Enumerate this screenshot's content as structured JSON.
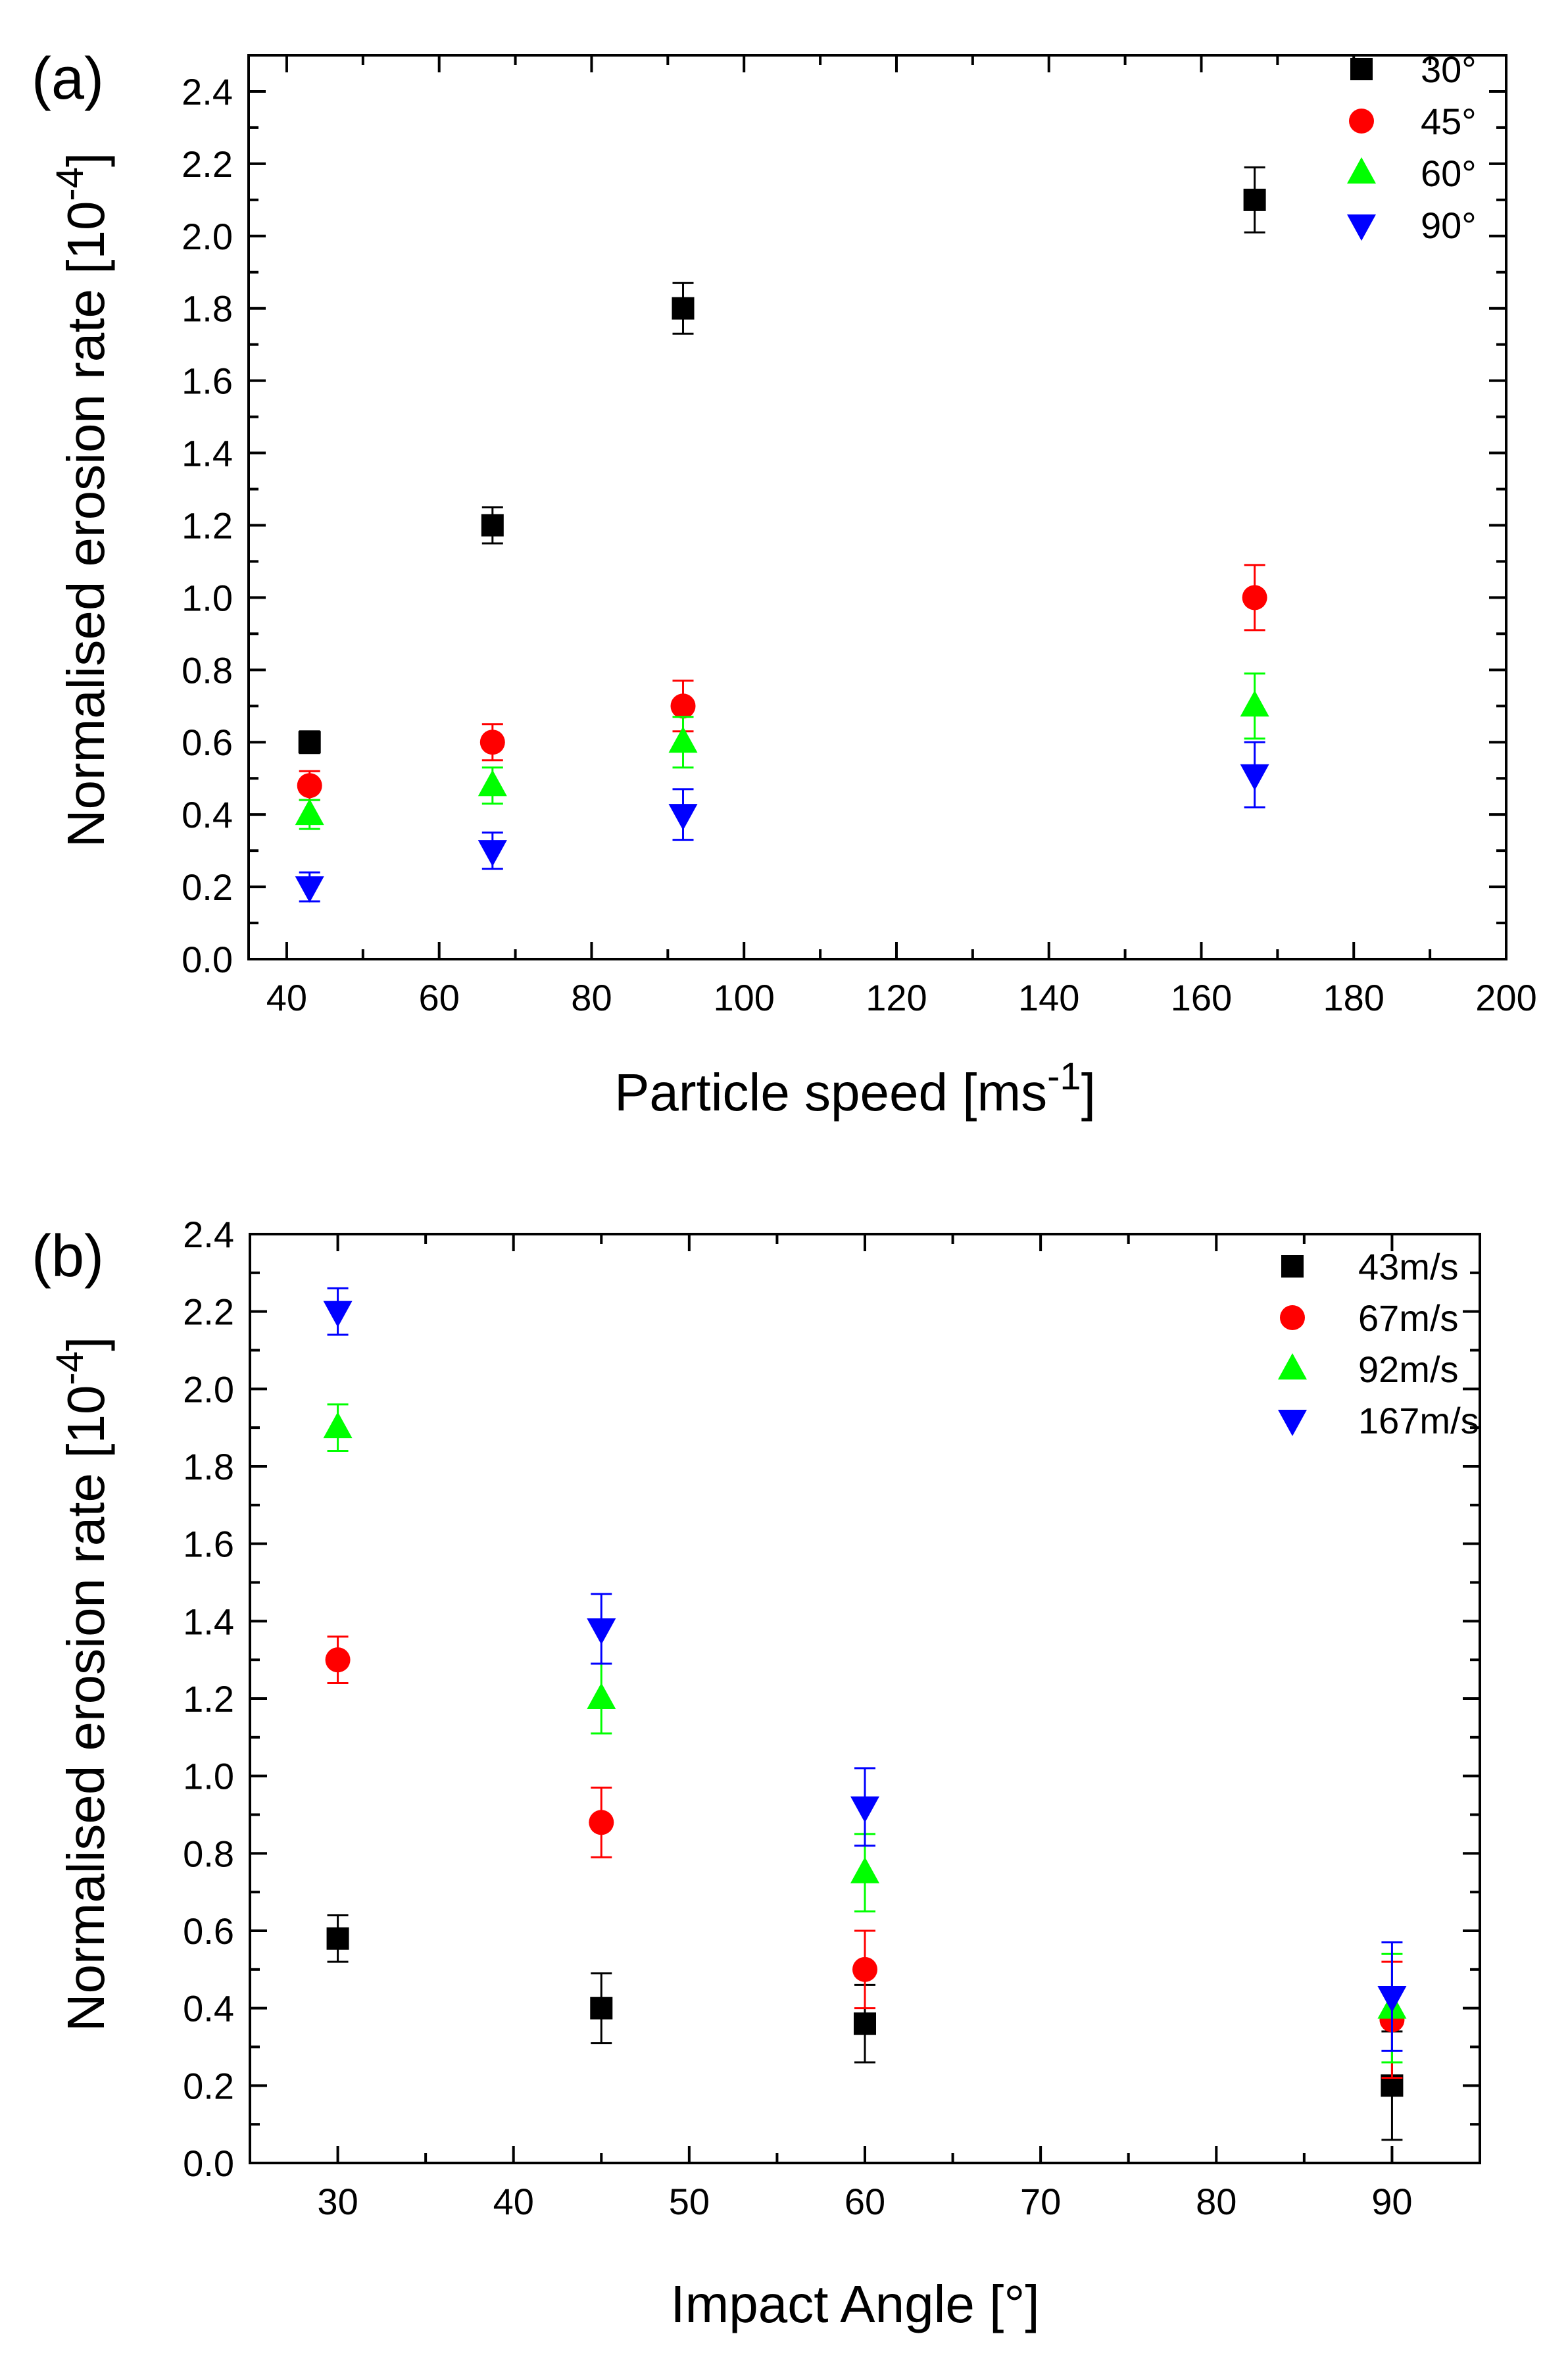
{
  "chart_data": [
    {
      "type": "scatter",
      "panel_label": "(a)",
      "title": "",
      "xlabel": "Particle speed [ms",
      "xlabel_sup": "-1",
      "xlabel_end": "]",
      "ylabel": "Normalised erosion rate [10",
      "ylabel_sup": "-4",
      "ylabel_end": "]",
      "xlim": [
        35,
        200
      ],
      "ylim": [
        0,
        2.5
      ],
      "xticks": [
        40,
        60,
        80,
        100,
        120,
        140,
        160,
        180,
        200
      ],
      "xtick_labels": [
        "40",
        "60",
        "80",
        "100",
        "120",
        "140",
        "160",
        "180",
        "200"
      ],
      "yticks": [
        0.0,
        0.2,
        0.4,
        0.6,
        0.8,
        1.0,
        1.2,
        1.4,
        1.6,
        1.8,
        2.0,
        2.2,
        2.4
      ],
      "ytick_labels": [
        "0.0",
        "0.2",
        "0.4",
        "0.6",
        "0.8",
        "1.0",
        "1.2",
        "1.4",
        "1.6",
        "1.8",
        "2.0",
        "2.2",
        "2.4"
      ],
      "legend_position": "top-right",
      "series": [
        {
          "name": "30°",
          "marker": "square",
          "color": "#000000",
          "x": [
            43,
            67,
            92,
            167
          ],
          "y": [
            0.6,
            1.2,
            1.8,
            2.1
          ],
          "err": [
            0.03,
            0.05,
            0.07,
            0.09
          ]
        },
        {
          "name": "45°",
          "marker": "circle",
          "color": "#ff0000",
          "x": [
            43,
            67,
            92,
            167
          ],
          "y": [
            0.48,
            0.6,
            0.7,
            1.0
          ],
          "err": [
            0.04,
            0.05,
            0.07,
            0.09
          ]
        },
        {
          "name": "60°",
          "marker": "triangle-up",
          "color": "#00ff00",
          "x": [
            43,
            67,
            92,
            167
          ],
          "y": [
            0.4,
            0.48,
            0.6,
            0.7
          ],
          "err": [
            0.04,
            0.05,
            0.07,
            0.09
          ]
        },
        {
          "name": "90°",
          "marker": "triangle-down",
          "color": "#0000ff",
          "x": [
            43,
            67,
            92,
            167
          ],
          "y": [
            0.2,
            0.3,
            0.4,
            0.51
          ],
          "err": [
            0.04,
            0.05,
            0.07,
            0.09
          ]
        }
      ]
    },
    {
      "type": "scatter",
      "panel_label": "(b)",
      "title": "",
      "xlabel": "Impact Angle [°]",
      "xlabel_sup": "",
      "xlabel_end": "",
      "ylabel": "Normalised erosion rate [10",
      "ylabel_sup": "-4",
      "ylabel_end": "]",
      "xlim": [
        25,
        95
      ],
      "ylim": [
        0,
        2.4
      ],
      "xticks": [
        30,
        40,
        50,
        60,
        70,
        80,
        90
      ],
      "xtick_labels": [
        "30",
        "40",
        "50",
        "60",
        "70",
        "80",
        "90"
      ],
      "yticks": [
        0.0,
        0.2,
        0.4,
        0.6,
        0.8,
        1.0,
        1.2,
        1.4,
        1.6,
        1.8,
        2.0,
        2.2,
        2.4
      ],
      "ytick_labels": [
        "0.0",
        "0.2",
        "0.4",
        "0.6",
        "0.8",
        "1.0",
        "1.2",
        "1.4",
        "1.6",
        "1.8",
        "2.0",
        "2.2",
        "2.4"
      ],
      "legend_position": "top-right",
      "series": [
        {
          "name": "43m/s",
          "marker": "square",
          "color": "#000000",
          "x": [
            30,
            45,
            60,
            90
          ],
          "y": [
            0.58,
            0.4,
            0.36,
            0.2
          ],
          "err": [
            0.06,
            0.09,
            0.1,
            0.14
          ]
        },
        {
          "name": "67m/s",
          "marker": "circle",
          "color": "#ff0000",
          "x": [
            30,
            45,
            60,
            90
          ],
          "y": [
            1.3,
            0.88,
            0.5,
            0.37
          ],
          "err": [
            0.06,
            0.09,
            0.1,
            0.15
          ]
        },
        {
          "name": "92m/s",
          "marker": "triangle-up",
          "color": "#00ff00",
          "x": [
            30,
            45,
            60,
            90
          ],
          "y": [
            1.9,
            1.2,
            0.75,
            0.4
          ],
          "err": [
            0.06,
            0.09,
            0.1,
            0.14
          ]
        },
        {
          "name": "167m/s",
          "marker": "triangle-down",
          "color": "#0000ff",
          "x": [
            30,
            45,
            60,
            90
          ],
          "y": [
            2.2,
            1.38,
            0.92,
            0.43
          ],
          "err": [
            0.06,
            0.09,
            0.1,
            0.14
          ]
        }
      ]
    }
  ]
}
